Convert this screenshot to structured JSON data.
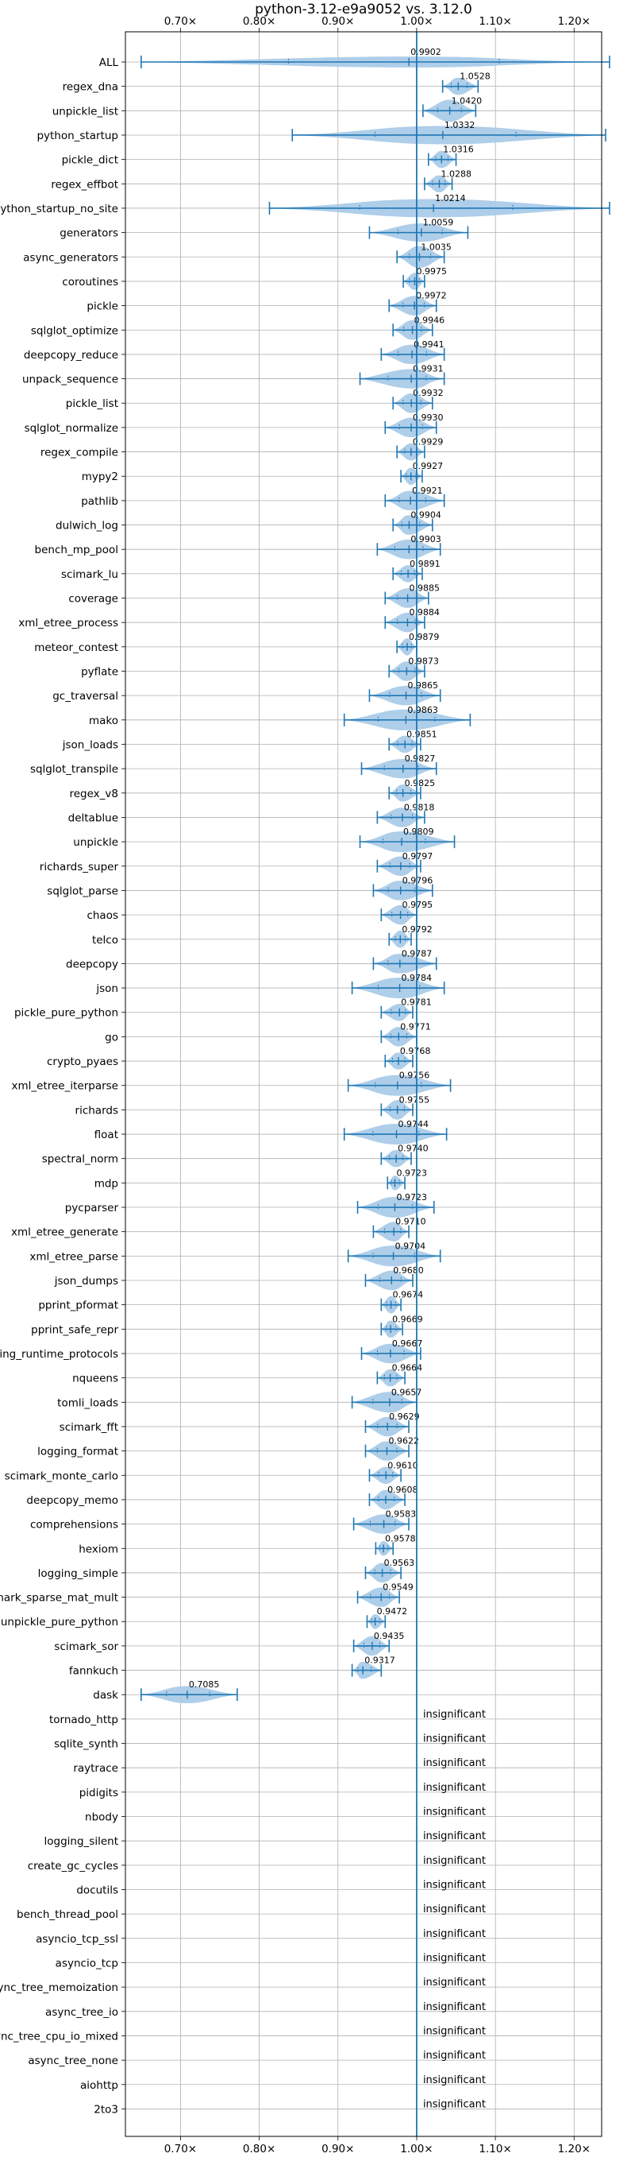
{
  "chart_data": {
    "type": "violin",
    "title": "python-3.12-e9a9052 vs. 3.12.0",
    "xlim": [
      0.63,
      1.235
    ],
    "x_ticks": [
      0.7,
      0.8,
      0.9,
      1.0,
      1.1,
      1.2
    ],
    "x_tick_labels": [
      "0.70×",
      "0.80×",
      "0.90×",
      "1.00×",
      "1.10×",
      "1.20×"
    ],
    "reference_line": 1.0,
    "grid": true,
    "insignificant_label": "insignificant",
    "benchmarks": [
      {
        "name": "ALL",
        "value": 0.9902,
        "label": "0.9902",
        "min": 0.65,
        "max": 1.245,
        "width": 0.45
      },
      {
        "name": "regex_dna",
        "value": 1.0528,
        "label": "1.0528",
        "min": 1.033,
        "max": 1.078,
        "width": 0.7
      },
      {
        "name": "unpickle_list",
        "value": 1.042,
        "label": "1.0420",
        "min": 1.008,
        "max": 1.075,
        "width": 0.9
      },
      {
        "name": "python_startup",
        "value": 1.0332,
        "label": "1.0332",
        "min": 0.842,
        "max": 1.24,
        "width": 0.75
      },
      {
        "name": "pickle_dict",
        "value": 1.0316,
        "label": "1.0316",
        "min": 1.015,
        "max": 1.05,
        "width": 0.7
      },
      {
        "name": "regex_effbot",
        "value": 1.0288,
        "label": "1.0288",
        "min": 1.01,
        "max": 1.045,
        "width": 0.7
      },
      {
        "name": "python_startup_no_site",
        "value": 1.0214,
        "label": "1.0214",
        "min": 0.813,
        "max": 1.245,
        "width": 0.75
      },
      {
        "name": "generators",
        "value": 1.0059,
        "label": "1.0059",
        "min": 0.94,
        "max": 1.065,
        "width": 0.75
      },
      {
        "name": "async_generators",
        "value": 1.0035,
        "label": "1.0035",
        "min": 0.975,
        "max": 1.035,
        "width": 0.9
      },
      {
        "name": "coroutines",
        "value": 0.9975,
        "label": "0.9975",
        "min": 0.983,
        "max": 1.01,
        "width": 0.7
      },
      {
        "name": "pickle",
        "value": 0.9972,
        "label": "0.9972",
        "min": 0.965,
        "max": 1.025,
        "width": 0.8
      },
      {
        "name": "sqlglot_optimize",
        "value": 0.9946,
        "label": "0.9946",
        "min": 0.97,
        "max": 1.02,
        "width": 0.8
      },
      {
        "name": "deepcopy_reduce",
        "value": 0.9941,
        "label": "0.9941",
        "min": 0.955,
        "max": 1.035,
        "width": 0.8
      },
      {
        "name": "unpack_sequence",
        "value": 0.9931,
        "label": "0.9931",
        "min": 0.928,
        "max": 1.035,
        "width": 0.8
      },
      {
        "name": "pickle_list",
        "value": 0.9932,
        "label": "0.9932",
        "min": 0.97,
        "max": 1.02,
        "width": 0.8
      },
      {
        "name": "sqlglot_normalize",
        "value": 0.993,
        "label": "0.9930",
        "min": 0.96,
        "max": 1.025,
        "width": 0.8
      },
      {
        "name": "regex_compile",
        "value": 0.9929,
        "label": "0.9929",
        "min": 0.975,
        "max": 1.01,
        "width": 0.7
      },
      {
        "name": "mypy2",
        "value": 0.9927,
        "label": "0.9927",
        "min": 0.98,
        "max": 1.007,
        "width": 0.7
      },
      {
        "name": "pathlib",
        "value": 0.9921,
        "label": "0.9921",
        "min": 0.96,
        "max": 1.035,
        "width": 0.8
      },
      {
        "name": "dulwich_log",
        "value": 0.9904,
        "label": "0.9904",
        "min": 0.97,
        "max": 1.02,
        "width": 0.8
      },
      {
        "name": "bench_mp_pool",
        "value": 0.9903,
        "label": "0.9903",
        "min": 0.95,
        "max": 1.03,
        "width": 0.8
      },
      {
        "name": "scimark_lu",
        "value": 0.9891,
        "label": "0.9891",
        "min": 0.97,
        "max": 1.007,
        "width": 0.7
      },
      {
        "name": "coverage",
        "value": 0.9885,
        "label": "0.9885",
        "min": 0.96,
        "max": 1.015,
        "width": 0.8
      },
      {
        "name": "xml_etree_process",
        "value": 0.9884,
        "label": "0.9884",
        "min": 0.96,
        "max": 1.01,
        "width": 0.8
      },
      {
        "name": "meteor_contest",
        "value": 0.9879,
        "label": "0.9879",
        "min": 0.975,
        "max": 1.0,
        "width": 0.7
      },
      {
        "name": "pyflate",
        "value": 0.9873,
        "label": "0.9873",
        "min": 0.965,
        "max": 1.01,
        "width": 0.8
      },
      {
        "name": "gc_traversal",
        "value": 0.9865,
        "label": "0.9865",
        "min": 0.94,
        "max": 1.03,
        "width": 0.8
      },
      {
        "name": "mako",
        "value": 0.9863,
        "label": "0.9863",
        "min": 0.908,
        "max": 1.068,
        "width": 0.85
      },
      {
        "name": "json_loads",
        "value": 0.9851,
        "label": "0.9851",
        "min": 0.965,
        "max": 1.005,
        "width": 0.7
      },
      {
        "name": "sqlglot_transpile",
        "value": 0.9827,
        "label": "0.9827",
        "min": 0.93,
        "max": 1.025,
        "width": 0.8
      },
      {
        "name": "regex_v8",
        "value": 0.9825,
        "label": "0.9825",
        "min": 0.965,
        "max": 1.005,
        "width": 0.7
      },
      {
        "name": "deltablue",
        "value": 0.9818,
        "label": "0.9818",
        "min": 0.95,
        "max": 1.01,
        "width": 0.8
      },
      {
        "name": "unpickle",
        "value": 0.9809,
        "label": "0.9809",
        "min": 0.928,
        "max": 1.048,
        "width": 0.85
      },
      {
        "name": "richards_super",
        "value": 0.9797,
        "label": "0.9797",
        "min": 0.95,
        "max": 1.005,
        "width": 0.8
      },
      {
        "name": "sqlglot_parse",
        "value": 0.9796,
        "label": "0.9796",
        "min": 0.945,
        "max": 1.02,
        "width": 0.8
      },
      {
        "name": "chaos",
        "value": 0.9795,
        "label": "0.9795",
        "min": 0.955,
        "max": 1.0,
        "width": 0.8
      },
      {
        "name": "telco",
        "value": 0.9792,
        "label": "0.9792",
        "min": 0.965,
        "max": 0.993,
        "width": 0.7
      },
      {
        "name": "deepcopy",
        "value": 0.9787,
        "label": "0.9787",
        "min": 0.945,
        "max": 1.025,
        "width": 0.8
      },
      {
        "name": "json",
        "value": 0.9784,
        "label": "0.9784",
        "min": 0.918,
        "max": 1.035,
        "width": 0.85
      },
      {
        "name": "pickle_pure_python",
        "value": 0.9781,
        "label": "0.9781",
        "min": 0.955,
        "max": 0.995,
        "width": 0.7
      },
      {
        "name": "go",
        "value": 0.9771,
        "label": "0.9771",
        "min": 0.955,
        "max": 1.0,
        "width": 0.8
      },
      {
        "name": "crypto_pyaes",
        "value": 0.9768,
        "label": "0.9768",
        "min": 0.96,
        "max": 0.995,
        "width": 0.7
      },
      {
        "name": "xml_etree_iterparse",
        "value": 0.9756,
        "label": "0.9756",
        "min": 0.913,
        "max": 1.043,
        "width": 0.85
      },
      {
        "name": "richards",
        "value": 0.9755,
        "label": "0.9755",
        "min": 0.955,
        "max": 0.995,
        "width": 0.8
      },
      {
        "name": "float",
        "value": 0.9744,
        "label": "0.9744",
        "min": 0.908,
        "max": 1.038,
        "width": 0.85
      },
      {
        "name": "spectral_norm",
        "value": 0.974,
        "label": "0.9740",
        "min": 0.955,
        "max": 0.993,
        "width": 0.7
      },
      {
        "name": "mdp",
        "value": 0.9723,
        "label": "0.9723",
        "min": 0.963,
        "max": 0.985,
        "width": 0.6
      },
      {
        "name": "pycparser",
        "value": 0.9723,
        "label": "0.9723",
        "min": 0.925,
        "max": 1.022,
        "width": 0.85
      },
      {
        "name": "xml_etree_generate",
        "value": 0.971,
        "label": "0.9710",
        "min": 0.945,
        "max": 0.99,
        "width": 0.8
      },
      {
        "name": "xml_etree_parse",
        "value": 0.9704,
        "label": "0.9704",
        "min": 0.913,
        "max": 1.03,
        "width": 0.85
      },
      {
        "name": "json_dumps",
        "value": 0.968,
        "label": "0.9680",
        "min": 0.935,
        "max": 0.995,
        "width": 0.8
      },
      {
        "name": "pprint_pformat",
        "value": 0.9674,
        "label": "0.9674",
        "min": 0.955,
        "max": 0.98,
        "width": 0.7
      },
      {
        "name": "pprint_safe_repr",
        "value": 0.9669,
        "label": "0.9669",
        "min": 0.955,
        "max": 0.982,
        "width": 0.7
      },
      {
        "name": "typing_runtime_protocols",
        "value": 0.9667,
        "label": "0.9667",
        "min": 0.93,
        "max": 1.005,
        "width": 0.8
      },
      {
        "name": "nqueens",
        "value": 0.9664,
        "label": "0.9664",
        "min": 0.95,
        "max": 0.985,
        "width": 0.7
      },
      {
        "name": "tomli_loads",
        "value": 0.9657,
        "label": "0.9657",
        "min": 0.918,
        "max": 1.0,
        "width": 0.85
      },
      {
        "name": "scimark_fft",
        "value": 0.9629,
        "label": "0.9629",
        "min": 0.935,
        "max": 0.99,
        "width": 0.8
      },
      {
        "name": "logging_format",
        "value": 0.9622,
        "label": "0.9622",
        "min": 0.935,
        "max": 0.99,
        "width": 0.8
      },
      {
        "name": "scimark_monte_carlo",
        "value": 0.961,
        "label": "0.9610",
        "min": 0.94,
        "max": 0.98,
        "width": 0.7
      },
      {
        "name": "deepcopy_memo",
        "value": 0.9608,
        "label": "0.9608",
        "min": 0.94,
        "max": 0.985,
        "width": 0.8
      },
      {
        "name": "comprehensions",
        "value": 0.9583,
        "label": "0.9583",
        "min": 0.92,
        "max": 0.99,
        "width": 0.8
      },
      {
        "name": "hexiom",
        "value": 0.9578,
        "label": "0.9578",
        "min": 0.948,
        "max": 0.97,
        "width": 0.6
      },
      {
        "name": "logging_simple",
        "value": 0.9563,
        "label": "0.9563",
        "min": 0.935,
        "max": 0.98,
        "width": 0.8
      },
      {
        "name": "scimark_sparse_mat_mult",
        "value": 0.9549,
        "label": "0.9549",
        "min": 0.925,
        "max": 0.978,
        "width": 0.8
      },
      {
        "name": "unpickle_pure_python",
        "value": 0.9472,
        "label": "0.9472",
        "min": 0.937,
        "max": 0.96,
        "width": 0.6
      },
      {
        "name": "scimark_sor",
        "value": 0.9435,
        "label": "0.9435",
        "min": 0.92,
        "max": 0.965,
        "width": 0.8
      },
      {
        "name": "fannkuch",
        "value": 0.9317,
        "label": "0.9317",
        "min": 0.918,
        "max": 0.955,
        "width": 0.7
      },
      {
        "name": "dask",
        "value": 0.7085,
        "label": "0.7085",
        "min": 0.65,
        "max": 0.772,
        "width": 0.7
      },
      {
        "name": "tornado_http",
        "value": null,
        "label": "insignificant"
      },
      {
        "name": "sqlite_synth",
        "value": null,
        "label": "insignificant"
      },
      {
        "name": "raytrace",
        "value": null,
        "label": "insignificant"
      },
      {
        "name": "pidigits",
        "value": null,
        "label": "insignificant"
      },
      {
        "name": "nbody",
        "value": null,
        "label": "insignificant"
      },
      {
        "name": "logging_silent",
        "value": null,
        "label": "insignificant"
      },
      {
        "name": "create_gc_cycles",
        "value": null,
        "label": "insignificant"
      },
      {
        "name": "docutils",
        "value": null,
        "label": "insignificant"
      },
      {
        "name": "bench_thread_pool",
        "value": null,
        "label": "insignificant"
      },
      {
        "name": "asyncio_tcp_ssl",
        "value": null,
        "label": "insignificant"
      },
      {
        "name": "asyncio_tcp",
        "value": null,
        "label": "insignificant"
      },
      {
        "name": "async_tree_memoization",
        "value": null,
        "label": "insignificant"
      },
      {
        "name": "async_tree_io",
        "value": null,
        "label": "insignificant"
      },
      {
        "name": "async_tree_cpu_io_mixed",
        "value": null,
        "label": "insignificant"
      },
      {
        "name": "async_tree_none",
        "value": null,
        "label": "insignificant"
      },
      {
        "name": "aiohttp",
        "value": null,
        "label": "insignificant"
      },
      {
        "name": "2to3",
        "value": null,
        "label": "insignificant"
      }
    ],
    "colors": {
      "line": "#1f77b4",
      "violin": "#aacbe8",
      "grid": "#b0b0b0",
      "text": "#000000"
    }
  }
}
